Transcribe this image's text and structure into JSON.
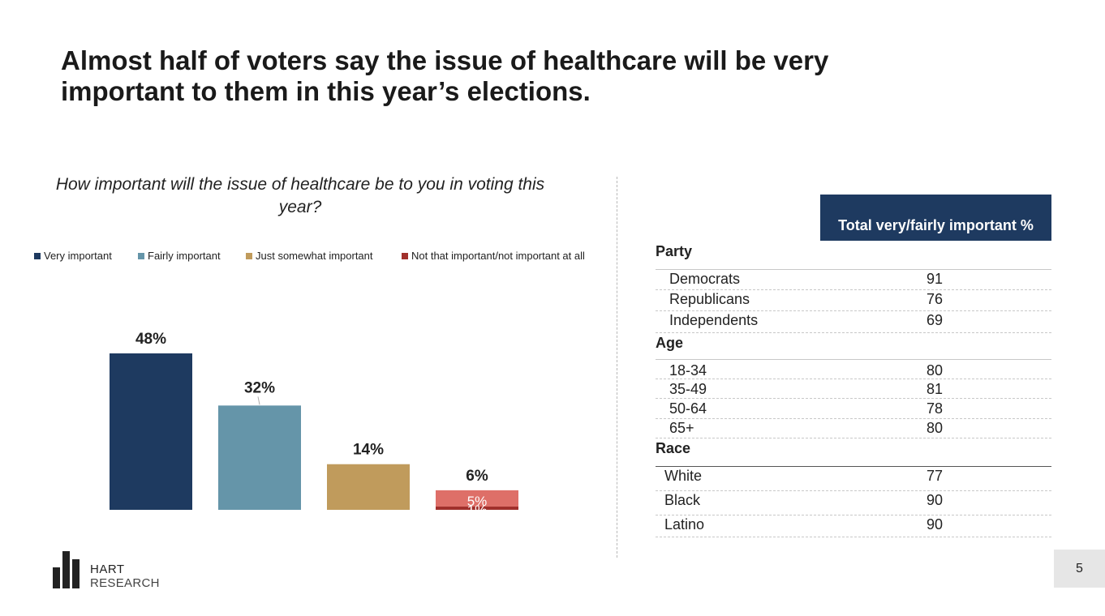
{
  "title": "Almost half of voters say the issue of healthcare will be very important to them in this year’s elections.",
  "page_number": "5",
  "logo": {
    "line1": "HART",
    "line2": "RESEARCH"
  },
  "colors": {
    "very": "#1e3a60",
    "fairly": "#6595a9",
    "somewhat": "#c09b5c",
    "not_light": "#de6f68",
    "not_dark": "#a1302c",
    "table_header": "#1e3a60"
  },
  "chart_data": {
    "type": "bar",
    "title": "How important will the issue of healthcare be to you in voting this year?",
    "categories": [
      "Very important",
      "Fairly important",
      "Just somewhat important",
      "Not that important/not important at all"
    ],
    "values": [
      48,
      32,
      14,
      6
    ],
    "value_labels": [
      "48%",
      "32%",
      "14%",
      "6%"
    ],
    "stack_last": [
      {
        "name": "Not that important",
        "value": 5,
        "label": "5%"
      },
      {
        "name": "Not important at all",
        "value": 1,
        "label": "1%"
      }
    ],
    "ylim": [
      0,
      55
    ],
    "grid": false,
    "legend_position": "top"
  },
  "table": {
    "header": "Total very/fairly important %",
    "groups": [
      {
        "title": "Party",
        "rows": [
          {
            "label": "Democrats",
            "value": "91"
          },
          {
            "label": "Republicans",
            "value": "76"
          },
          {
            "label": "Independents",
            "value": "69"
          }
        ]
      },
      {
        "title": "Age",
        "rows": [
          {
            "label": "18-34",
            "value": "80"
          },
          {
            "label": "35-49",
            "value": "81"
          },
          {
            "label": "50-64",
            "value": "78"
          },
          {
            "label": "65+",
            "value": "80"
          }
        ]
      },
      {
        "title": "Race",
        "rows": [
          {
            "label": "White",
            "value": "77"
          },
          {
            "label": "Black",
            "value": "90"
          },
          {
            "label": "Latino",
            "value": "90"
          }
        ]
      }
    ]
  }
}
